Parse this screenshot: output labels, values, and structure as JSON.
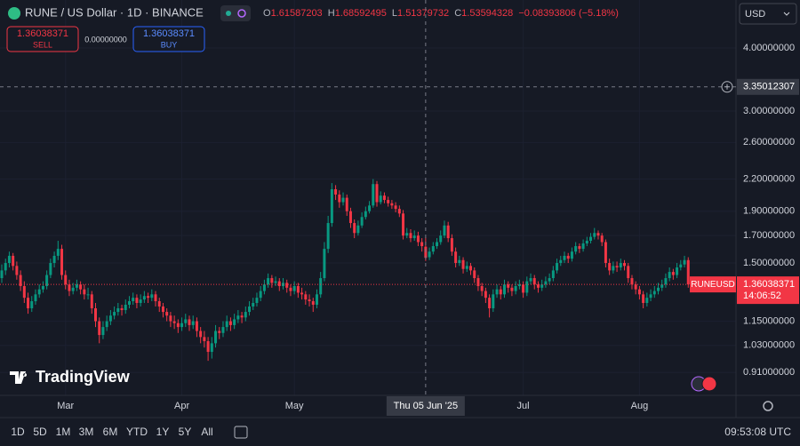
{
  "header": {
    "symbol": "RUNE / US Dollar · 1D · BINANCE",
    "ohlc_keys": [
      "O",
      "H",
      "L",
      "C"
    ],
    "change": "−0.08393806 (−5.18%)",
    "currency": "USD"
  },
  "trade": {
    "sell": "SELL",
    "buy": "BUY",
    "spread": "0.00000000"
  },
  "last_price": {
    "symbol": "RUNEUSD",
    "countdown": "14:06:52"
  },
  "logo": "TradingView",
  "toolbar": {
    "ranges": [
      "1D",
      "5D",
      "1M",
      "3M",
      "6M",
      "YTD",
      "1Y",
      "5Y",
      "All"
    ],
    "clock": "09:53:08 UTC"
  },
  "chart_data": {
    "type": "candlestick",
    "log_scale": true,
    "grid": true,
    "up_color": "#089981",
    "down_color": "#f23645",
    "ylim": [
      0.82,
      4.98
    ],
    "yticks": [
      {
        "value": 4,
        "label": "4.00000000"
      },
      {
        "value": 3,
        "label": "3.00000000"
      },
      {
        "value": 2.6,
        "label": "2.60000000"
      },
      {
        "value": 2.2,
        "label": "2.20000000"
      },
      {
        "value": 1.9,
        "label": "1.90000000"
      },
      {
        "value": 1.7,
        "label": "1.70000000"
      },
      {
        "value": 1.5,
        "label": "1.50000000"
      },
      {
        "value": 1.15,
        "label": "1.15000000"
      },
      {
        "value": 1.03,
        "label": "1.03000000"
      },
      {
        "value": 0.91,
        "label": "0.91000000"
      }
    ],
    "xticks": [
      {
        "value": 17,
        "label": "Mar"
      },
      {
        "value": 48,
        "label": "Apr"
      },
      {
        "value": 78,
        "label": "May"
      },
      {
        "value": 139,
        "label": "Jul"
      },
      {
        "value": 170,
        "label": "Aug"
      }
    ],
    "crosshair": {
      "x": 113,
      "y": 3.35012307,
      "label": "Thu 05 Jun '25"
    },
    "candles": [
      [
        1.4,
        1.49,
        1.37,
        1.45
      ],
      [
        1.45,
        1.53,
        1.42,
        1.5
      ],
      [
        1.5,
        1.58,
        1.47,
        1.55
      ],
      [
        1.55,
        1.57,
        1.45,
        1.48
      ],
      [
        1.48,
        1.51,
        1.39,
        1.42
      ],
      [
        1.42,
        1.45,
        1.32,
        1.35
      ],
      [
        1.35,
        1.38,
        1.25,
        1.28
      ],
      [
        1.28,
        1.31,
        1.19,
        1.22
      ],
      [
        1.22,
        1.29,
        1.2,
        1.26
      ],
      [
        1.26,
        1.33,
        1.24,
        1.3
      ],
      [
        1.3,
        1.36,
        1.28,
        1.33
      ],
      [
        1.33,
        1.38,
        1.31,
        1.35
      ],
      [
        1.35,
        1.45,
        1.33,
        1.42
      ],
      [
        1.42,
        1.53,
        1.4,
        1.5
      ],
      [
        1.5,
        1.58,
        1.47,
        1.55
      ],
      [
        1.55,
        1.66,
        1.52,
        1.6
      ],
      [
        1.6,
        1.63,
        1.39,
        1.42
      ],
      [
        1.42,
        1.45,
        1.33,
        1.36
      ],
      [
        1.36,
        1.39,
        1.29,
        1.32
      ],
      [
        1.32,
        1.37,
        1.3,
        1.34
      ],
      [
        1.34,
        1.39,
        1.32,
        1.36
      ],
      [
        1.36,
        1.38,
        1.3,
        1.33
      ],
      [
        1.33,
        1.36,
        1.27,
        1.3
      ],
      [
        1.3,
        1.34,
        1.27,
        1.3
      ],
      [
        1.3,
        1.32,
        1.19,
        1.22
      ],
      [
        1.22,
        1.25,
        1.12,
        1.15
      ],
      [
        1.15,
        1.17,
        1.04,
        1.08
      ],
      [
        1.08,
        1.15,
        1.06,
        1.12
      ],
      [
        1.12,
        1.18,
        1.1,
        1.15
      ],
      [
        1.15,
        1.21,
        1.13,
        1.18
      ],
      [
        1.18,
        1.23,
        1.16,
        1.2
      ],
      [
        1.2,
        1.25,
        1.18,
        1.22
      ],
      [
        1.22,
        1.24,
        1.18,
        1.21
      ],
      [
        1.21,
        1.27,
        1.19,
        1.24
      ],
      [
        1.24,
        1.29,
        1.22,
        1.26
      ],
      [
        1.26,
        1.31,
        1.24,
        1.28
      ],
      [
        1.28,
        1.3,
        1.22,
        1.25
      ],
      [
        1.25,
        1.3,
        1.23,
        1.27
      ],
      [
        1.27,
        1.32,
        1.25,
        1.29
      ],
      [
        1.29,
        1.31,
        1.25,
        1.28
      ],
      [
        1.28,
        1.33,
        1.26,
        1.3
      ],
      [
        1.3,
        1.32,
        1.23,
        1.26
      ],
      [
        1.26,
        1.28,
        1.2,
        1.23
      ],
      [
        1.23,
        1.25,
        1.17,
        1.2
      ],
      [
        1.2,
        1.22,
        1.15,
        1.18
      ],
      [
        1.18,
        1.2,
        1.12,
        1.15
      ],
      [
        1.15,
        1.18,
        1.11,
        1.14
      ],
      [
        1.14,
        1.16,
        1.09,
        1.12
      ],
      [
        1.12,
        1.17,
        1.1,
        1.14
      ],
      [
        1.14,
        1.19,
        1.12,
        1.16
      ],
      [
        1.16,
        1.18,
        1.1,
        1.13
      ],
      [
        1.13,
        1.18,
        1.11,
        1.15
      ],
      [
        1.15,
        1.17,
        1.07,
        1.1
      ],
      [
        1.1,
        1.12,
        1.04,
        1.07
      ],
      [
        1.07,
        1.1,
        1.02,
        1.05
      ],
      [
        1.05,
        1.07,
        0.96,
        1.0
      ],
      [
        1.0,
        1.07,
        0.97,
        1.04
      ],
      [
        1.04,
        1.13,
        1.02,
        1.1
      ],
      [
        1.1,
        1.12,
        1.06,
        1.09
      ],
      [
        1.09,
        1.15,
        1.07,
        1.12
      ],
      [
        1.12,
        1.18,
        1.1,
        1.15
      ],
      [
        1.15,
        1.17,
        1.1,
        1.13
      ],
      [
        1.13,
        1.19,
        1.11,
        1.16
      ],
      [
        1.16,
        1.21,
        1.14,
        1.18
      ],
      [
        1.18,
        1.2,
        1.14,
        1.17
      ],
      [
        1.17,
        1.23,
        1.15,
        1.2
      ],
      [
        1.2,
        1.26,
        1.18,
        1.23
      ],
      [
        1.23,
        1.28,
        1.21,
        1.25
      ],
      [
        1.25,
        1.31,
        1.23,
        1.28
      ],
      [
        1.28,
        1.35,
        1.26,
        1.32
      ],
      [
        1.32,
        1.39,
        1.3,
        1.36
      ],
      [
        1.36,
        1.43,
        1.34,
        1.4
      ],
      [
        1.4,
        1.42,
        1.34,
        1.37
      ],
      [
        1.37,
        1.41,
        1.35,
        1.38
      ],
      [
        1.38,
        1.4,
        1.32,
        1.35
      ],
      [
        1.35,
        1.4,
        1.33,
        1.37
      ],
      [
        1.37,
        1.39,
        1.31,
        1.34
      ],
      [
        1.34,
        1.36,
        1.29,
        1.32
      ],
      [
        1.32,
        1.38,
        1.3,
        1.35
      ],
      [
        1.35,
        1.37,
        1.28,
        1.31
      ],
      [
        1.31,
        1.34,
        1.27,
        1.3
      ],
      [
        1.3,
        1.32,
        1.24,
        1.27
      ],
      [
        1.27,
        1.3,
        1.23,
        1.26
      ],
      [
        1.26,
        1.28,
        1.2,
        1.24
      ],
      [
        1.24,
        1.33,
        1.22,
        1.3
      ],
      [
        1.3,
        1.44,
        1.28,
        1.4
      ],
      [
        1.4,
        1.65,
        1.38,
        1.6
      ],
      [
        1.6,
        1.86,
        1.57,
        1.8
      ],
      [
        1.8,
        2.16,
        1.77,
        2.1
      ],
      [
        2.1,
        2.14,
        2.0,
        2.05
      ],
      [
        2.05,
        2.09,
        1.93,
        1.98
      ],
      [
        1.98,
        2.07,
        1.95,
        2.02
      ],
      [
        2.02,
        2.05,
        1.86,
        1.9
      ],
      [
        1.9,
        1.93,
        1.76,
        1.8
      ],
      [
        1.8,
        1.83,
        1.68,
        1.72
      ],
      [
        1.72,
        1.82,
        1.7,
        1.78
      ],
      [
        1.78,
        1.89,
        1.76,
        1.85
      ],
      [
        1.85,
        1.94,
        1.83,
        1.9
      ],
      [
        1.9,
        1.99,
        1.88,
        1.95
      ],
      [
        1.95,
        2.2,
        1.93,
        2.15
      ],
      [
        2.15,
        2.18,
        1.94,
        1.98
      ],
      [
        1.98,
        2.08,
        1.96,
        2.04
      ],
      [
        2.04,
        2.07,
        1.97,
        2.0
      ],
      [
        2.0,
        2.03,
        1.94,
        1.97
      ],
      [
        1.97,
        2.0,
        1.92,
        1.95
      ],
      [
        1.95,
        1.98,
        1.89,
        1.92
      ],
      [
        1.92,
        1.95,
        1.85,
        1.88
      ],
      [
        1.88,
        1.91,
        1.67,
        1.7
      ],
      [
        1.7,
        1.76,
        1.68,
        1.72
      ],
      [
        1.72,
        1.75,
        1.65,
        1.68
      ],
      [
        1.68,
        1.74,
        1.66,
        1.7
      ],
      [
        1.7,
        1.73,
        1.62,
        1.65
      ],
      [
        1.65,
        1.68,
        1.58,
        1.62
      ],
      [
        1.61587203,
        1.68592495,
        1.51379732,
        1.53594328
      ],
      [
        1.54,
        1.61,
        1.52,
        1.58
      ],
      [
        1.58,
        1.65,
        1.56,
        1.62
      ],
      [
        1.62,
        1.68,
        1.6,
        1.65
      ],
      [
        1.65,
        1.74,
        1.63,
        1.7
      ],
      [
        1.7,
        1.82,
        1.68,
        1.78
      ],
      [
        1.78,
        1.81,
        1.65,
        1.68
      ],
      [
        1.68,
        1.71,
        1.55,
        1.58
      ],
      [
        1.58,
        1.61,
        1.47,
        1.5
      ],
      [
        1.5,
        1.55,
        1.48,
        1.52
      ],
      [
        1.52,
        1.54,
        1.43,
        1.46
      ],
      [
        1.46,
        1.51,
        1.44,
        1.48
      ],
      [
        1.48,
        1.5,
        1.42,
        1.45
      ],
      [
        1.45,
        1.47,
        1.37,
        1.4
      ],
      [
        1.4,
        1.42,
        1.32,
        1.35
      ],
      [
        1.35,
        1.37,
        1.29,
        1.32
      ],
      [
        1.32,
        1.34,
        1.25,
        1.28
      ],
      [
        1.28,
        1.3,
        1.17,
        1.22
      ],
      [
        1.22,
        1.33,
        1.2,
        1.3
      ],
      [
        1.3,
        1.36,
        1.28,
        1.33
      ],
      [
        1.33,
        1.35,
        1.27,
        1.3
      ],
      [
        1.3,
        1.39,
        1.28,
        1.36
      ],
      [
        1.36,
        1.38,
        1.31,
        1.34
      ],
      [
        1.34,
        1.36,
        1.29,
        1.32
      ],
      [
        1.32,
        1.38,
        1.3,
        1.35
      ],
      [
        1.35,
        1.39,
        1.33,
        1.36
      ],
      [
        1.36,
        1.38,
        1.28,
        1.31
      ],
      [
        1.31,
        1.41,
        1.29,
        1.38
      ],
      [
        1.38,
        1.43,
        1.36,
        1.4
      ],
      [
        1.4,
        1.42,
        1.33,
        1.36
      ],
      [
        1.36,
        1.38,
        1.31,
        1.34
      ],
      [
        1.34,
        1.39,
        1.32,
        1.36
      ],
      [
        1.36,
        1.41,
        1.34,
        1.38
      ],
      [
        1.38,
        1.43,
        1.36,
        1.4
      ],
      [
        1.4,
        1.48,
        1.38,
        1.45
      ],
      [
        1.45,
        1.53,
        1.43,
        1.5
      ],
      [
        1.5,
        1.55,
        1.48,
        1.52
      ],
      [
        1.52,
        1.58,
        1.5,
        1.55
      ],
      [
        1.55,
        1.57,
        1.5,
        1.53
      ],
      [
        1.53,
        1.61,
        1.51,
        1.58
      ],
      [
        1.58,
        1.65,
        1.56,
        1.62
      ],
      [
        1.62,
        1.64,
        1.57,
        1.6
      ],
      [
        1.6,
        1.67,
        1.58,
        1.64
      ],
      [
        1.64,
        1.69,
        1.62,
        1.66
      ],
      [
        1.66,
        1.72,
        1.64,
        1.69
      ],
      [
        1.69,
        1.76,
        1.67,
        1.72
      ],
      [
        1.72,
        1.74,
        1.67,
        1.7
      ],
      [
        1.7,
        1.72,
        1.62,
        1.65
      ],
      [
        1.65,
        1.67,
        1.47,
        1.5
      ],
      [
        1.5,
        1.53,
        1.42,
        1.45
      ],
      [
        1.45,
        1.51,
        1.43,
        1.48
      ],
      [
        1.48,
        1.51,
        1.44,
        1.47
      ],
      [
        1.47,
        1.53,
        1.45,
        1.5
      ],
      [
        1.5,
        1.52,
        1.45,
        1.48
      ],
      [
        1.48,
        1.5,
        1.37,
        1.4
      ],
      [
        1.4,
        1.42,
        1.33,
        1.36
      ],
      [
        1.36,
        1.38,
        1.3,
        1.33
      ],
      [
        1.33,
        1.35,
        1.27,
        1.3
      ],
      [
        1.3,
        1.32,
        1.22,
        1.25
      ],
      [
        1.25,
        1.31,
        1.23,
        1.28
      ],
      [
        1.28,
        1.33,
        1.26,
        1.3
      ],
      [
        1.3,
        1.35,
        1.28,
        1.32
      ],
      [
        1.32,
        1.37,
        1.3,
        1.34
      ],
      [
        1.34,
        1.39,
        1.32,
        1.36
      ],
      [
        1.36,
        1.43,
        1.34,
        1.4
      ],
      [
        1.4,
        1.47,
        1.38,
        1.44
      ],
      [
        1.44,
        1.46,
        1.39,
        1.42
      ],
      [
        1.42,
        1.5,
        1.4,
        1.47
      ],
      [
        1.47,
        1.52,
        1.45,
        1.49
      ],
      [
        1.49,
        1.55,
        1.47,
        1.52
      ],
      [
        1.52,
        1.54,
        1.34,
        1.36038371
      ]
    ]
  }
}
